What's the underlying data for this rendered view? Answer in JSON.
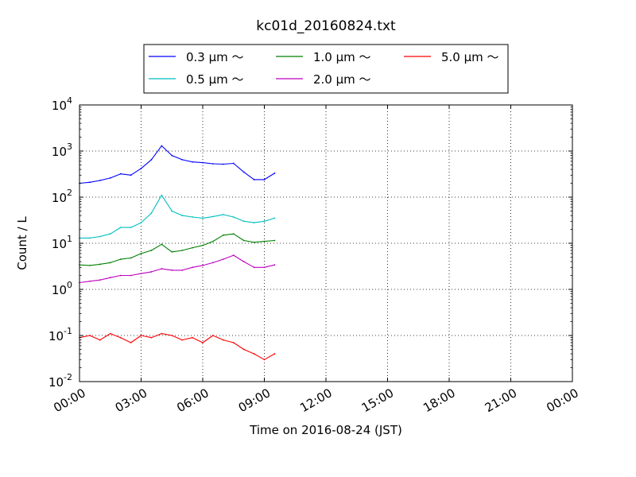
{
  "chart_data": {
    "type": "line",
    "title": "kc01d_20160824.txt",
    "xlabel": "Time on 2016-08-24 (JST)",
    "ylabel": "Count / L",
    "yscale": "log",
    "ylim": [
      0.01,
      10000
    ],
    "xlim": [
      "2016-08-24 00:00",
      "2016-08-25 00:00"
    ],
    "x_ticks": [
      "00:00",
      "03:00",
      "06:00",
      "09:00",
      "12:00",
      "15:00",
      "18:00",
      "21:00",
      "00:00"
    ],
    "y_ticks": [
      {
        "base": "10",
        "exp": "-2"
      },
      {
        "base": "10",
        "exp": "-1"
      },
      {
        "base": "10",
        "exp": "0"
      },
      {
        "base": "10",
        "exp": "1"
      },
      {
        "base": "10",
        "exp": "2"
      },
      {
        "base": "10",
        "exp": "3"
      },
      {
        "base": "10",
        "exp": "4"
      }
    ],
    "grid": true,
    "legend_position": "top-center",
    "x": [
      "00:00",
      "00:30",
      "01:00",
      "01:30",
      "02:00",
      "02:30",
      "03:00",
      "03:30",
      "04:00",
      "04:30",
      "05:00",
      "05:30",
      "06:00",
      "06:30",
      "07:00",
      "07:30",
      "08:00",
      "08:30",
      "09:00",
      "09:30"
    ],
    "series": [
      {
        "name": "0.3 μm ～",
        "color": "#0000ff",
        "values": [
          200,
          210,
          230,
          260,
          320,
          300,
          420,
          650,
          1300,
          800,
          650,
          580,
          560,
          530,
          520,
          540,
          350,
          240,
          240,
          330
        ]
      },
      {
        "name": "0.5 μm ～",
        "color": "#00bfbf",
        "values": [
          13,
          13,
          14,
          16,
          22,
          22,
          28,
          45,
          110,
          50,
          40,
          37,
          35,
          38,
          42,
          37,
          30,
          28,
          30,
          35
        ]
      },
      {
        "name": "1.0 μm ～",
        "color": "#008000",
        "values": [
          3.4,
          3.3,
          3.5,
          3.8,
          4.5,
          4.8,
          6.0,
          7.0,
          9.5,
          6.5,
          7.0,
          8.0,
          9.0,
          11.0,
          15.0,
          16.0,
          11.5,
          10.5,
          11.0,
          11.5
        ]
      },
      {
        "name": "2.0 μm ～",
        "color": "#bf00bf",
        "values": [
          1.4,
          1.5,
          1.6,
          1.8,
          2.0,
          2.0,
          2.2,
          2.4,
          2.8,
          2.6,
          2.6,
          3.0,
          3.3,
          3.8,
          4.5,
          5.5,
          4.0,
          3.0,
          3.0,
          3.4
        ]
      },
      {
        "name": "5.0 μm ～",
        "color": "#ff0000",
        "values": [
          0.09,
          0.1,
          0.08,
          0.11,
          0.09,
          0.07,
          0.1,
          0.09,
          0.11,
          0.1,
          0.08,
          0.09,
          0.07,
          0.1,
          0.08,
          0.07,
          0.05,
          0.04,
          0.03,
          0.04
        ]
      }
    ]
  }
}
